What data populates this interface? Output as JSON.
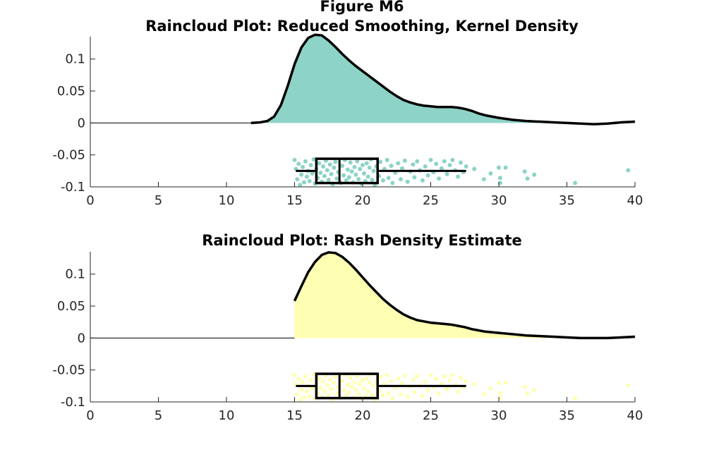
{
  "figure": {
    "suptitle": "Figure M6"
  },
  "chart_data": [
    {
      "type": "raincloud",
      "title": "Raincloud Plot: Reduced Smoothing, Kernel Density",
      "xlabel": "",
      "ylabel": "",
      "xlim": [
        0,
        40
      ],
      "ylim": [
        -0.1,
        0.135
      ],
      "x_ticks": [
        "0",
        "5",
        "10",
        "15",
        "20",
        "25",
        "30",
        "35",
        "40"
      ],
      "y_ticks": [
        "-0.1",
        "-0.05",
        "0",
        "0.05",
        "0.1"
      ],
      "fill_color": "#8dd3c7",
      "fill_start": 11.8,
      "density": {
        "x": [
          11.8,
          12.5,
          13.0,
          13.5,
          14.0,
          14.5,
          15.0,
          15.5,
          16.0,
          16.5,
          17.0,
          17.5,
          18.0,
          18.5,
          19.0,
          19.5,
          20.0,
          20.5,
          21.0,
          21.5,
          22.0,
          22.5,
          23.0,
          23.5,
          24.0,
          24.5,
          25.0,
          25.5,
          26.0,
          26.5,
          27.0,
          27.5,
          28.0,
          28.5,
          29.0,
          30.0,
          31.0,
          32.0,
          33.0,
          34.0,
          35.0,
          36.0,
          37.0,
          38.0,
          39.0,
          40.0
        ],
        "y": [
          0,
          0.001,
          0.003,
          0.01,
          0.028,
          0.058,
          0.092,
          0.118,
          0.133,
          0.138,
          0.137,
          0.129,
          0.119,
          0.108,
          0.098,
          0.089,
          0.081,
          0.073,
          0.065,
          0.057,
          0.049,
          0.042,
          0.036,
          0.032,
          0.029,
          0.027,
          0.026,
          0.025,
          0.025,
          0.025,
          0.024,
          0.022,
          0.019,
          0.015,
          0.012,
          0.008,
          0.005,
          0.003,
          0.002,
          0.001,
          0.0,
          -0.001,
          -0.002,
          -0.001,
          0.001,
          0.002
        ]
      },
      "box": {
        "whisker_low": 15.1,
        "q1": 16.6,
        "median": 18.3,
        "q3": 21.1,
        "whisker_high": 27.6
      },
      "points": [
        [
          15.0,
          -0.058
        ],
        [
          15.1,
          -0.072
        ],
        [
          15.2,
          -0.088
        ],
        [
          15.3,
          -0.064
        ],
        [
          15.4,
          -0.097
        ],
        [
          15.5,
          -0.081
        ],
        [
          15.6,
          -0.069
        ],
        [
          15.7,
          -0.093
        ],
        [
          15.8,
          -0.06
        ],
        [
          15.9,
          -0.084
        ],
        [
          16.0,
          -0.075
        ],
        [
          16.1,
          -0.091
        ],
        [
          16.2,
          -0.066
        ],
        [
          16.3,
          -0.079
        ],
        [
          16.4,
          -0.057
        ],
        [
          16.5,
          -0.095
        ],
        [
          16.6,
          -0.071
        ],
        [
          16.7,
          -0.086
        ],
        [
          16.8,
          -0.063
        ],
        [
          16.9,
          -0.078
        ],
        [
          17.0,
          -0.092
        ],
        [
          17.1,
          -0.068
        ],
        [
          17.2,
          -0.083
        ],
        [
          17.3,
          -0.059
        ],
        [
          17.4,
          -0.074
        ],
        [
          17.5,
          -0.089
        ],
        [
          17.6,
          -0.065
        ],
        [
          17.7,
          -0.08
        ],
        [
          17.8,
          -0.096
        ],
        [
          17.9,
          -0.07
        ],
        [
          18.0,
          -0.061
        ],
        [
          18.1,
          -0.087
        ],
        [
          18.2,
          -0.077
        ],
        [
          18.4,
          -0.094
        ],
        [
          18.5,
          -0.067
        ],
        [
          18.6,
          -0.082
        ],
        [
          18.7,
          -0.058
        ],
        [
          18.8,
          -0.09
        ],
        [
          18.9,
          -0.073
        ],
        [
          19.0,
          -0.085
        ],
        [
          19.1,
          -0.062
        ],
        [
          19.2,
          -0.076
        ],
        [
          19.3,
          -0.093
        ],
        [
          19.4,
          -0.069
        ],
        [
          19.5,
          -0.081
        ],
        [
          19.6,
          -0.06
        ],
        [
          19.7,
          -0.088
        ],
        [
          19.8,
          -0.072
        ],
        [
          19.9,
          -0.095
        ],
        [
          20.0,
          -0.066
        ],
        [
          20.1,
          -0.079
        ],
        [
          20.2,
          -0.091
        ],
        [
          20.3,
          -0.063
        ],
        [
          20.4,
          -0.084
        ],
        [
          20.5,
          -0.07
        ],
        [
          20.6,
          -0.057
        ],
        [
          20.7,
          -0.089
        ],
        [
          20.8,
          -0.075
        ],
        [
          20.9,
          -0.097
        ],
        [
          21.0,
          -0.068
        ],
        [
          21.2,
          -0.083
        ],
        [
          21.3,
          -0.061
        ],
        [
          21.5,
          -0.09
        ],
        [
          21.6,
          -0.072
        ],
        [
          21.8,
          -0.058
        ],
        [
          21.9,
          -0.086
        ],
        [
          22.1,
          -0.067
        ],
        [
          22.2,
          -0.094
        ],
        [
          22.4,
          -0.078
        ],
        [
          22.6,
          -0.063
        ],
        [
          22.8,
          -0.088
        ],
        [
          22.9,
          -0.071
        ],
        [
          23.1,
          -0.059
        ],
        [
          23.3,
          -0.092
        ],
        [
          23.5,
          -0.076
        ],
        [
          23.7,
          -0.065
        ],
        [
          23.8,
          -0.085
        ],
        [
          24.0,
          -0.06
        ],
        [
          24.2,
          -0.074
        ],
        [
          24.4,
          -0.09
        ],
        [
          24.6,
          -0.068
        ],
        [
          24.8,
          -0.082
        ],
        [
          25.0,
          -0.058
        ],
        [
          25.2,
          -0.077
        ],
        [
          25.4,
          -0.064
        ],
        [
          25.6,
          -0.087
        ],
        [
          25.8,
          -0.071
        ],
        [
          26.0,
          -0.06
        ],
        [
          26.2,
          -0.08
        ],
        [
          26.4,
          -0.066
        ],
        [
          26.6,
          -0.058
        ],
        [
          26.8,
          -0.074
        ],
        [
          27.0,
          -0.084
        ],
        [
          27.2,
          -0.062
        ],
        [
          27.4,
          -0.077
        ],
        [
          27.6,
          -0.068
        ],
        [
          28.2,
          -0.072
        ],
        [
          28.9,
          -0.088
        ],
        [
          29.4,
          -0.079
        ],
        [
          30.0,
          -0.07
        ],
        [
          30.1,
          -0.086
        ],
        [
          30.1,
          -0.094
        ],
        [
          30.5,
          -0.07
        ],
        [
          31.9,
          -0.076
        ],
        [
          32.1,
          -0.087
        ],
        [
          32.6,
          -0.081
        ],
        [
          35.6,
          -0.094
        ],
        [
          39.5,
          -0.074
        ]
      ]
    },
    {
      "type": "raincloud",
      "title": "Raincloud Plot: Rash Density Estimate",
      "xlabel": "",
      "ylabel": "",
      "xlim": [
        0,
        40
      ],
      "ylim": [
        -0.1,
        0.135
      ],
      "x_ticks": [
        "0",
        "5",
        "10",
        "15",
        "20",
        "25",
        "30",
        "35",
        "40"
      ],
      "y_ticks": [
        "-0.1",
        "-0.05",
        "0",
        "0.05",
        "0.1"
      ],
      "fill_color": "#ffffb3",
      "fill_start": 15.0,
      "density": {
        "x": [
          15.0,
          15.5,
          16.0,
          16.5,
          17.0,
          17.5,
          18.0,
          18.5,
          19.0,
          19.5,
          20.0,
          20.5,
          21.0,
          21.5,
          22.0,
          22.5,
          23.0,
          23.5,
          24.0,
          24.5,
          25.0,
          25.5,
          26.0,
          26.5,
          27.0,
          27.5,
          28.0,
          28.5,
          29.0,
          30.0,
          31.0,
          32.0,
          33.0,
          34.0,
          35.0,
          36.0,
          37.0,
          38.0,
          39.0,
          40.0
        ],
        "y": [
          0.058,
          0.081,
          0.103,
          0.119,
          0.13,
          0.134,
          0.133,
          0.127,
          0.118,
          0.107,
          0.095,
          0.083,
          0.072,
          0.061,
          0.052,
          0.044,
          0.037,
          0.032,
          0.028,
          0.026,
          0.024,
          0.023,
          0.022,
          0.021,
          0.019,
          0.017,
          0.014,
          0.012,
          0.01,
          0.008,
          0.006,
          0.004,
          0.003,
          0.002,
          0.001,
          0.0,
          0.0,
          0.0,
          0.001,
          0.002
        ]
      },
      "box": {
        "whisker_low": 15.1,
        "q1": 16.6,
        "median": 18.3,
        "q3": 21.1,
        "whisker_high": 27.6
      },
      "points": [
        [
          15.0,
          -0.058
        ],
        [
          15.1,
          -0.072
        ],
        [
          15.2,
          -0.088
        ],
        [
          15.3,
          -0.064
        ],
        [
          15.4,
          -0.097
        ],
        [
          15.5,
          -0.081
        ],
        [
          15.6,
          -0.069
        ],
        [
          15.7,
          -0.093
        ],
        [
          15.8,
          -0.06
        ],
        [
          15.9,
          -0.084
        ],
        [
          16.0,
          -0.075
        ],
        [
          16.1,
          -0.091
        ],
        [
          16.2,
          -0.066
        ],
        [
          16.3,
          -0.079
        ],
        [
          16.4,
          -0.057
        ],
        [
          16.5,
          -0.095
        ],
        [
          16.6,
          -0.071
        ],
        [
          16.7,
          -0.086
        ],
        [
          16.8,
          -0.063
        ],
        [
          16.9,
          -0.078
        ],
        [
          17.0,
          -0.092
        ],
        [
          17.1,
          -0.068
        ],
        [
          17.2,
          -0.083
        ],
        [
          17.3,
          -0.059
        ],
        [
          17.4,
          -0.074
        ],
        [
          17.5,
          -0.089
        ],
        [
          17.6,
          -0.065
        ],
        [
          17.7,
          -0.08
        ],
        [
          17.8,
          -0.096
        ],
        [
          17.9,
          -0.07
        ],
        [
          18.0,
          -0.061
        ],
        [
          18.1,
          -0.087
        ],
        [
          18.2,
          -0.077
        ],
        [
          18.4,
          -0.094
        ],
        [
          18.5,
          -0.067
        ],
        [
          18.6,
          -0.082
        ],
        [
          18.7,
          -0.058
        ],
        [
          18.8,
          -0.09
        ],
        [
          18.9,
          -0.073
        ],
        [
          19.0,
          -0.085
        ],
        [
          19.1,
          -0.062
        ],
        [
          19.2,
          -0.076
        ],
        [
          19.3,
          -0.093
        ],
        [
          19.4,
          -0.069
        ],
        [
          19.5,
          -0.081
        ],
        [
          19.6,
          -0.06
        ],
        [
          19.7,
          -0.088
        ],
        [
          19.8,
          -0.072
        ],
        [
          19.9,
          -0.095
        ],
        [
          20.0,
          -0.066
        ],
        [
          20.1,
          -0.079
        ],
        [
          20.2,
          -0.091
        ],
        [
          20.3,
          -0.063
        ],
        [
          20.4,
          -0.084
        ],
        [
          20.5,
          -0.07
        ],
        [
          20.6,
          -0.057
        ],
        [
          20.7,
          -0.089
        ],
        [
          20.8,
          -0.075
        ],
        [
          20.9,
          -0.097
        ],
        [
          21.0,
          -0.068
        ],
        [
          21.2,
          -0.083
        ],
        [
          21.3,
          -0.061
        ],
        [
          21.5,
          -0.09
        ],
        [
          21.6,
          -0.072
        ],
        [
          21.8,
          -0.058
        ],
        [
          21.9,
          -0.086
        ],
        [
          22.1,
          -0.067
        ],
        [
          22.2,
          -0.094
        ],
        [
          22.4,
          -0.078
        ],
        [
          22.6,
          -0.063
        ],
        [
          22.8,
          -0.088
        ],
        [
          22.9,
          -0.071
        ],
        [
          23.1,
          -0.059
        ],
        [
          23.3,
          -0.092
        ],
        [
          23.5,
          -0.076
        ],
        [
          23.7,
          -0.065
        ],
        [
          23.8,
          -0.085
        ],
        [
          24.0,
          -0.06
        ],
        [
          24.2,
          -0.074
        ],
        [
          24.4,
          -0.09
        ],
        [
          24.6,
          -0.068
        ],
        [
          24.8,
          -0.082
        ],
        [
          25.0,
          -0.058
        ],
        [
          25.2,
          -0.077
        ],
        [
          25.4,
          -0.064
        ],
        [
          25.6,
          -0.087
        ],
        [
          25.8,
          -0.071
        ],
        [
          26.0,
          -0.06
        ],
        [
          26.2,
          -0.08
        ],
        [
          26.4,
          -0.066
        ],
        [
          26.6,
          -0.058
        ],
        [
          26.8,
          -0.074
        ],
        [
          27.0,
          -0.084
        ],
        [
          27.2,
          -0.062
        ],
        [
          27.4,
          -0.077
        ],
        [
          27.6,
          -0.068
        ],
        [
          28.2,
          -0.072
        ],
        [
          28.9,
          -0.088
        ],
        [
          29.4,
          -0.079
        ],
        [
          30.0,
          -0.07
        ],
        [
          30.1,
          -0.086
        ],
        [
          30.1,
          -0.094
        ],
        [
          30.5,
          -0.07
        ],
        [
          31.9,
          -0.076
        ],
        [
          32.1,
          -0.087
        ],
        [
          32.6,
          -0.081
        ],
        [
          35.6,
          -0.094
        ],
        [
          39.5,
          -0.074
        ]
      ]
    }
  ]
}
